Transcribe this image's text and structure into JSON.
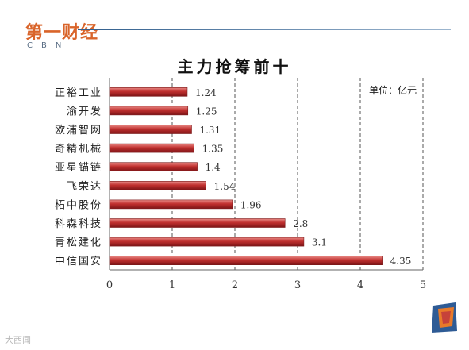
{
  "header": {
    "logo_cn": "第一财经",
    "logo_en": "CBN"
  },
  "chart_data": {
    "type": "bar",
    "orientation": "horizontal",
    "title": "主力抢筹前十",
    "unit_label": "单位：亿元",
    "categories": [
      "正裕工业",
      "渝开发",
      "欧浦智网",
      "奇精机械",
      "亚星锚链",
      "飞荣达",
      "柘中股份",
      "科森科技",
      "青松建化",
      "中信国安"
    ],
    "values": [
      1.24,
      1.25,
      1.31,
      1.35,
      1.4,
      1.54,
      1.96,
      2.8,
      3.1,
      4.35
    ],
    "value_labels": [
      "1.24",
      "1.25",
      "1.31",
      "1.35",
      "1.4",
      "1.54",
      "1.96",
      "2.8",
      "3.1",
      "4.35"
    ],
    "xlim": [
      0,
      5
    ],
    "xticks": [
      "0",
      "1",
      "2",
      "3",
      "4",
      "5"
    ],
    "grid": "vertical dashed",
    "bar_color": "#c0302f"
  },
  "watermark": "大西闻"
}
